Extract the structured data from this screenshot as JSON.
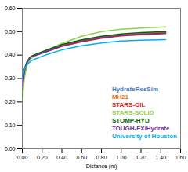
{
  "chart_data": {
    "type": "line",
    "x_label": "Distance (m)",
    "x": [
      0,
      0.02,
      0.05,
      0.08,
      0.1,
      0.2,
      0.3,
      0.4,
      0.6,
      0.8,
      1.0,
      1.2,
      1.45
    ],
    "xlim": [
      0,
      1.6
    ],
    "xticks": [
      {
        "value": 0,
        "label": "0.00"
      },
      {
        "value": 0.2,
        "label": "0.20"
      },
      {
        "value": 0.4,
        "label": "0.40"
      },
      {
        "value": 0.6,
        "label": "0.60"
      },
      {
        "value": 0.8,
        "label": "0.80"
      },
      {
        "value": 1.0,
        "label": "1.00"
      },
      {
        "value": 1.2,
        "label": "1.20"
      },
      {
        "value": 1.4,
        "label": "1.40"
      },
      {
        "value": 1.6,
        "label": "1.60"
      }
    ],
    "ylim": [
      0,
      0.6
    ],
    "yticks": [
      {
        "value": 0,
        "label": "0.00"
      },
      {
        "value": 0.1,
        "label": "0.10"
      },
      {
        "value": 0.2,
        "label": "0.20"
      },
      {
        "value": 0.3,
        "label": "0.30"
      },
      {
        "value": 0.4,
        "label": "0.40"
      },
      {
        "value": 0.5,
        "label": "0.50"
      },
      {
        "value": 0.6,
        "label": "0.60"
      }
    ],
    "legend": "lower right",
    "series": [
      {
        "name": "HydrateResSim",
        "color": "#4a7ebb",
        "values": [
          0.25,
          0.33,
          0.37,
          0.39,
          0.395,
          0.41,
          0.425,
          0.44,
          0.46,
          0.475,
          0.485,
          0.49,
          0.495
        ]
      },
      {
        "name": "MH21",
        "color": "#ff6600",
        "values": [
          0.24,
          0.32,
          0.37,
          0.39,
          0.395,
          0.412,
          0.427,
          0.442,
          0.462,
          0.477,
          0.487,
          0.492,
          0.497
        ]
      },
      {
        "name": "STARS-OIL",
        "color": "#e0201b",
        "values": [
          0.26,
          0.33,
          0.37,
          0.388,
          0.393,
          0.408,
          0.422,
          0.437,
          0.457,
          0.472,
          0.482,
          0.487,
          0.492
        ]
      },
      {
        "name": "STARS-SOLID",
        "color": "#92d050",
        "values": [
          0.2,
          0.3,
          0.36,
          0.38,
          0.39,
          0.41,
          0.43,
          0.45,
          0.48,
          0.5,
          0.51,
          0.515,
          0.52
        ]
      },
      {
        "name": "STOMP-HYD",
        "color": "#006600",
        "values": [
          0.27,
          0.34,
          0.375,
          0.392,
          0.397,
          0.414,
          0.43,
          0.445,
          0.465,
          0.48,
          0.49,
          0.496,
          0.5
        ]
      },
      {
        "name": "TOUGH-FX/Hydrate",
        "color": "#7030a0",
        "values": [
          0.25,
          0.33,
          0.37,
          0.389,
          0.394,
          0.409,
          0.424,
          0.439,
          0.459,
          0.474,
          0.484,
          0.489,
          0.494
        ]
      },
      {
        "name": "University of Houston",
        "color": "#00b0f0",
        "values": [
          0.3,
          0.34,
          0.36,
          0.372,
          0.378,
          0.395,
          0.41,
          0.422,
          0.44,
          0.452,
          0.46,
          0.463,
          0.466
        ]
      }
    ]
  }
}
